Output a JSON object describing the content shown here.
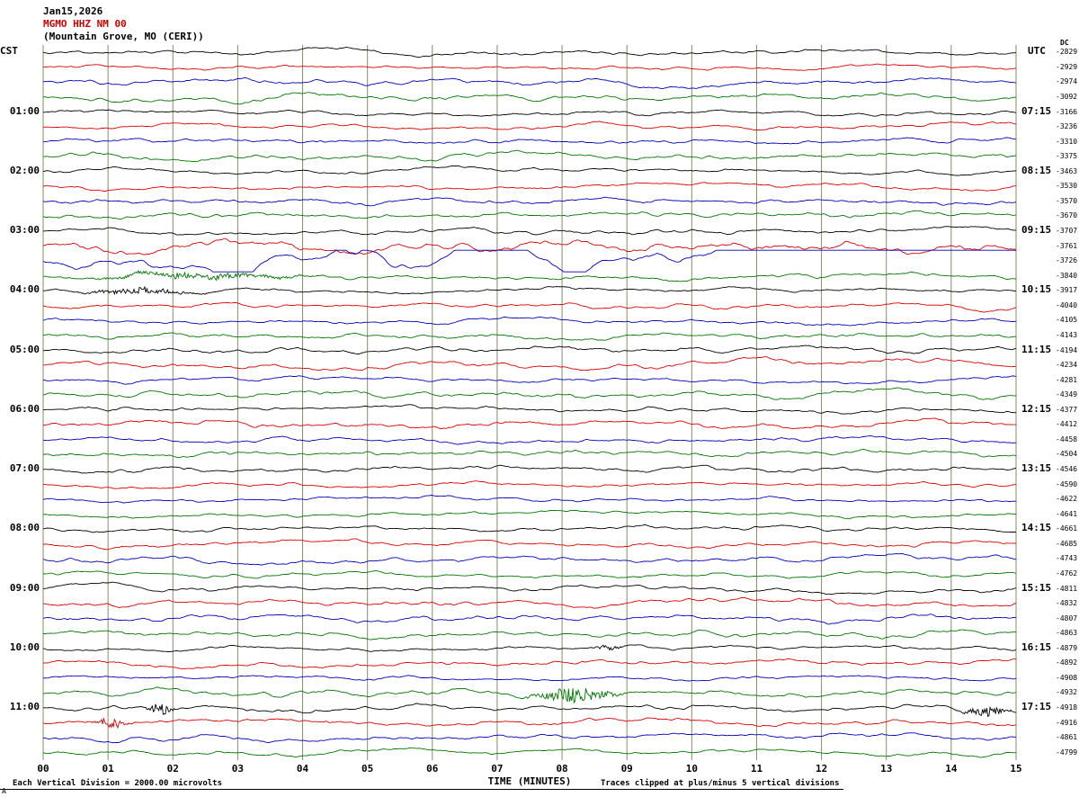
{
  "header": {
    "date": "Jan15,2026",
    "station": "MGMO HHZ NM 00",
    "location": "(Mountain Grove, MO (CERI))"
  },
  "axes": {
    "left_header": "CST",
    "right_header": "UTC",
    "dc_header": "DC",
    "xlabel": "TIME (MINUTES)"
  },
  "footer": {
    "scale_note": "Each Vertical Division = 2000.00 microvolts",
    "clip_note": "Traces clipped at plus/minus 5 vertical divisions",
    "corner_mark": "A"
  },
  "colors": {
    "station_header": "#cc0000",
    "grid": "#8a8a6a",
    "traces": [
      "#000000",
      "#dd0000",
      "#0000bb",
      "#007700"
    ]
  },
  "chart_data": {
    "type": "line",
    "title": "MGMO HHZ NM 00 helicorder record, Jan15,2026, Mountain Grove, MO (CERI)",
    "xlabel": "TIME (MINUTES)",
    "x_range": [
      0,
      15
    ],
    "x_ticks": [
      "00",
      "01",
      "02",
      "03",
      "04",
      "05",
      "06",
      "07",
      "08",
      "09",
      "10",
      "11",
      "12",
      "13",
      "14",
      "15"
    ],
    "rows": 48,
    "minutes_per_row": 15,
    "row_color_cycle": [
      "black",
      "red",
      "blue",
      "green"
    ],
    "hours": [
      {
        "cst": "01:00",
        "utc": "07:15",
        "row": 4
      },
      {
        "cst": "02:00",
        "utc": "08:15",
        "row": 8
      },
      {
        "cst": "03:00",
        "utc": "09:15",
        "row": 12
      },
      {
        "cst": "04:00",
        "utc": "10:15",
        "row": 16
      },
      {
        "cst": "05:00",
        "utc": "11:15",
        "row": 20
      },
      {
        "cst": "06:00",
        "utc": "12:15",
        "row": 24
      },
      {
        "cst": "07:00",
        "utc": "13:15",
        "row": 28
      },
      {
        "cst": "08:00",
        "utc": "14:15",
        "row": 32
      },
      {
        "cst": "09:00",
        "utc": "15:15",
        "row": 36
      },
      {
        "cst": "10:00",
        "utc": "16:15",
        "row": 40
      },
      {
        "cst": "11:00",
        "utc": "17:15",
        "row": 44
      }
    ],
    "dc_values": [
      -2829,
      -2929,
      -2974,
      -3092,
      -3166,
      -3236,
      -3310,
      -3375,
      -3463,
      -3530,
      -3570,
      -3670,
      -3707,
      -3761,
      -3726,
      -3840,
      -3917,
      -4040,
      -4105,
      -4143,
      -4194,
      -4234,
      -4281,
      -4349,
      -4377,
      -4412,
      -4458,
      -4504,
      -4546,
      -4590,
      -4622,
      -4641,
      -4661,
      -4685,
      -4743,
      -4762,
      -4811,
      -4832,
      -4807,
      -4863,
      -4879,
      -4892,
      -4908,
      -4932,
      -4918,
      -4916,
      -4861,
      -4799
    ],
    "special_rows": {
      "13": {
        "amp": 1.9,
        "rough": 1.1
      },
      "14": {
        "amp": 2.2,
        "damp": 0.9,
        "vdamp": 0.99,
        "rough": 0.45
      },
      "15": {
        "amp": 1.4
      }
    },
    "events": [
      {
        "row": 15,
        "t": 2.4,
        "w": 0.9,
        "amp": 3.5
      },
      {
        "row": 16,
        "t": 1.5,
        "w": 0.5,
        "amp": 3.5
      },
      {
        "row": 40,
        "t": 8.7,
        "w": 0.12,
        "amp": 4
      },
      {
        "row": 43,
        "t": 8.2,
        "w": 0.35,
        "amp": 9
      },
      {
        "row": 44,
        "t": 1.8,
        "w": 0.12,
        "amp": 7
      },
      {
        "row": 44,
        "t": 14.55,
        "w": 0.2,
        "amp": 6
      },
      {
        "row": 45,
        "t": 1.05,
        "w": 0.15,
        "amp": 6
      }
    ]
  }
}
